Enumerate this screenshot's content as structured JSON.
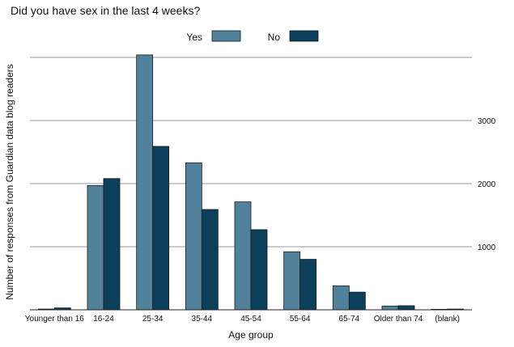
{
  "chart_data": {
    "type": "bar",
    "title": "Did you have sex in the last 4 weeks?",
    "xlabel": "Age group",
    "ylabel": "Number of responses from Guardian data blog readers",
    "categories": [
      "Younger than 16",
      "16-24",
      "25-34",
      "35-44",
      "45-54",
      "55-64",
      "65-74",
      "Older than 74",
      "(blank)"
    ],
    "series": [
      {
        "name": "Yes",
        "color": "#52819b",
        "values": [
          12,
          1970,
          4040,
          2330,
          1710,
          920,
          380,
          60,
          8
        ]
      },
      {
        "name": "No",
        "color": "#0c3f5a",
        "values": [
          30,
          2080,
          2590,
          1590,
          1270,
          800,
          280,
          65,
          12
        ]
      }
    ],
    "yticks": [
      1000,
      2000,
      3000
    ],
    "ylim": [
      0,
      4000
    ],
    "grid": true,
    "y_axis_side": "right",
    "legend_position": "top-center"
  }
}
